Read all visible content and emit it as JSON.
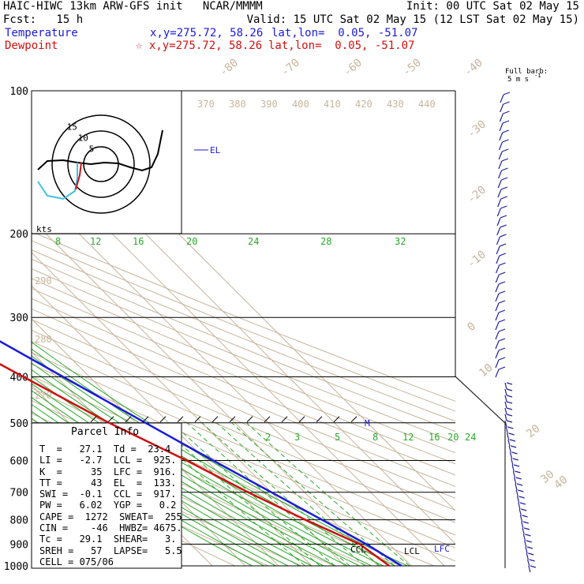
{
  "header": {
    "line1_left": "HAIC-HIWC 13km ARW-GFS init   NCAR/MMMM",
    "line1_right": "Init: 00 UTC Sat 02 May 15",
    "fcst": "Fcst:   15 h",
    "valid": "Valid: 15 UTC Sat 02 May 15 (12 LST Sat 02 May 15)",
    "temp_label": "Temperature",
    "temp_xy": "x,y=275.72, 58.26",
    "temp_latlon": "lat,lon=  0.05, -51.07",
    "dew_label": "Dewpoint",
    "dew_xy": "☆ x,y=275.72, 58.26",
    "dew_latlon": "lat,lon=  0.05, -51.07",
    "barb_title_1": "Full barb:",
    "barb_title_2": "5 m s",
    "barb_title_3": "-1"
  },
  "colors": {
    "temperature": "#1a1adb",
    "dewpoint": "#d01010",
    "isotherm": "#c8b49a",
    "mixing_ratio": "#2aaa2a",
    "hodo_low": "#40c0e0",
    "wind_barb": "#2020a0"
  },
  "chart_data": {
    "type": "line",
    "title": "Skew-T log-p sounding",
    "pressure_levels": [
      1000,
      900,
      800,
      700,
      600,
      500,
      400,
      300,
      200,
      100
    ],
    "pressure_labels": [
      "1000",
      "900",
      "800",
      "700",
      "600",
      "500",
      "400",
      "300",
      "200",
      "100"
    ],
    "skewed_temp_labels": [
      "-80",
      "-70",
      "-60",
      "-50",
      "-40",
      "-30",
      "-20",
      "-10",
      "0",
      "10",
      "20",
      "30",
      "40"
    ],
    "theta_labels_top": [
      "370",
      "380",
      "390",
      "400",
      "410",
      "420",
      "430",
      "440"
    ],
    "theta_labels_left": [
      "290",
      "280",
      "270"
    ],
    "mixing_ratio_labels_upper": [
      "8",
      "12",
      "16",
      "20",
      "24",
      "28",
      "32"
    ],
    "mixing_ratio_labels_lower": [
      "2",
      "3",
      "5",
      "8",
      "12",
      "16",
      "20",
      "24"
    ],
    "series": [
      {
        "name": "Temperature",
        "x": [
          27.1,
          23.0,
          17.0,
          10.0,
          2.0,
          -7.0,
          -18.0,
          -32.0,
          -52.0,
          -76.0
        ],
        "y": [
          1000,
          900,
          800,
          700,
          600,
          500,
          400,
          300,
          200,
          100
        ]
      },
      {
        "name": "Dewpoint",
        "x": [
          23.4,
          21.0,
          12.0,
          3.0,
          -6.0,
          -18.0,
          -30.0,
          -45.0,
          -62.0,
          -80.0
        ],
        "y": [
          1000,
          900,
          800,
          700,
          600,
          500,
          400,
          300,
          200,
          100
        ]
      }
    ],
    "level_markers": [
      "EL",
      "CCL",
      "LCL",
      "LFC",
      "M"
    ],
    "hodograph": {
      "rings": [
        "5",
        "10",
        "15"
      ],
      "units": "kts"
    }
  },
  "parcel": {
    "title": "Parcel Info",
    "rows": [
      "T  =   27.1  Td =  23.4",
      "LI =   -2.7  LCL =  925.",
      "K  =     35  LFC =  916.",
      "TT =     43  EL  =  133.",
      "SWI =  -0.1  CCL =  917.",
      "PW =   6.02  YGP =   0.2",
      "CAPE =  1272  SWEAT=  255",
      "CIN =    -46  HWBZ= 4675.",
      "Tc =   29.1  SHEAR=   3.",
      "SREH =   57  LAPSE=   5.5",
      "CELL = 075/06"
    ]
  }
}
